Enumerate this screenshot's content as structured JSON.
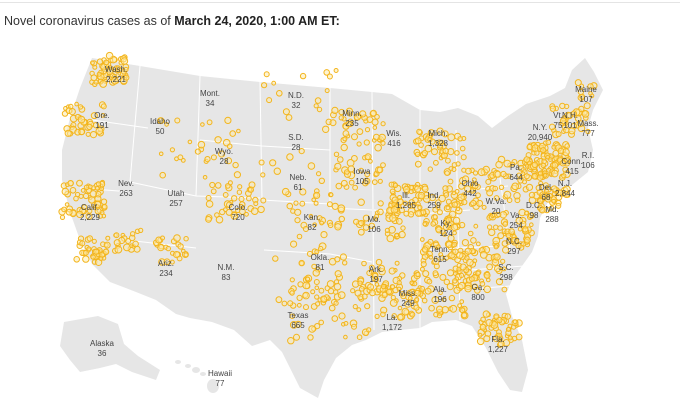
{
  "header": {
    "prefix": "Novel coronavirus cases as of ",
    "date": "March 24, 2020, 1:00 AM ET:"
  },
  "colors": {
    "land": "#e6e6e6",
    "borders": "#ffffff",
    "marker_stroke": "#f3b51d",
    "marker_fill": "#fde9a6",
    "text": "#444444"
  },
  "states": [
    {
      "id": "wa",
      "name": "Wash.",
      "count": "2,221"
    },
    {
      "id": "or",
      "name": "Ore.",
      "count": "191"
    },
    {
      "id": "ca",
      "name": "Calif.",
      "count": "2,229"
    },
    {
      "id": "id",
      "name": "Idaho",
      "count": "50"
    },
    {
      "id": "nv",
      "name": "Nev.",
      "count": "263"
    },
    {
      "id": "mt",
      "name": "Mont.",
      "count": "34"
    },
    {
      "id": "wy",
      "name": "Wyo.",
      "count": "28"
    },
    {
      "id": "ut",
      "name": "Utah",
      "count": "257"
    },
    {
      "id": "co",
      "name": "Colo.",
      "count": "720"
    },
    {
      "id": "az",
      "name": "Ariz.",
      "count": "234"
    },
    {
      "id": "nm",
      "name": "N.M.",
      "count": "83"
    },
    {
      "id": "nd",
      "name": "N.D.",
      "count": "32"
    },
    {
      "id": "sd",
      "name": "S.D.",
      "count": "28"
    },
    {
      "id": "ne",
      "name": "Neb.",
      "count": "61"
    },
    {
      "id": "ks",
      "name": "Kan.",
      "count": "82"
    },
    {
      "id": "ok",
      "name": "Okla.",
      "count": "81"
    },
    {
      "id": "tx",
      "name": "Texas",
      "count": "665"
    },
    {
      "id": "mn",
      "name": "Minn.",
      "count": "235"
    },
    {
      "id": "ia",
      "name": "Iowa",
      "count": "105"
    },
    {
      "id": "mo",
      "name": "Mo.",
      "count": "106"
    },
    {
      "id": "ar",
      "name": "Ark.",
      "count": "197"
    },
    {
      "id": "la",
      "name": "La.",
      "count": "1,172"
    },
    {
      "id": "wi",
      "name": "Wis.",
      "count": "416"
    },
    {
      "id": "il",
      "name": "Ill.",
      "count": "1,285"
    },
    {
      "id": "ms",
      "name": "Miss.",
      "count": "249"
    },
    {
      "id": "mi",
      "name": "Mich.",
      "count": "1,328"
    },
    {
      "id": "in",
      "name": "Ind.",
      "count": "259"
    },
    {
      "id": "ky",
      "name": "Ky.",
      "count": "124"
    },
    {
      "id": "tn",
      "name": "Tenn.",
      "count": "615"
    },
    {
      "id": "al",
      "name": "Ala.",
      "count": "196"
    },
    {
      "id": "oh",
      "name": "Ohio",
      "count": "442"
    },
    {
      "id": "ga",
      "name": "Ga.",
      "count": "800"
    },
    {
      "id": "fl",
      "name": "Fla.",
      "count": "1,227"
    },
    {
      "id": "sc",
      "name": "S.C.",
      "count": "298"
    },
    {
      "id": "nc",
      "name": "N.C.",
      "count": "297"
    },
    {
      "id": "va",
      "name": "Va.",
      "count": "254"
    },
    {
      "id": "wv",
      "name": "W.Va.",
      "count": "20"
    },
    {
      "id": "pa",
      "name": "Pa.",
      "count": "644"
    },
    {
      "id": "ny",
      "name": "N.Y.",
      "count": "20,940"
    },
    {
      "id": "vt",
      "name": "Vt.",
      "count": "75"
    },
    {
      "id": "nh",
      "name": "N.H.",
      "count": "101"
    },
    {
      "id": "me",
      "name": "Maine",
      "count": "107"
    },
    {
      "id": "ma",
      "name": "Mass.",
      "count": "777"
    },
    {
      "id": "ri",
      "name": "R.I.",
      "count": "106"
    },
    {
      "id": "ct",
      "name": "Conn.",
      "count": "415"
    },
    {
      "id": "nj",
      "name": "N.J.",
      "count": "2,844"
    },
    {
      "id": "de",
      "name": "Del.",
      "count": "68"
    },
    {
      "id": "md",
      "name": "Md.",
      "count": "288"
    },
    {
      "id": "dc",
      "name": "D.C.",
      "count": "98"
    },
    {
      "id": "ak",
      "name": "Alaska",
      "count": "36"
    },
    {
      "id": "hi",
      "name": "Hawaii",
      "count": "77"
    }
  ]
}
